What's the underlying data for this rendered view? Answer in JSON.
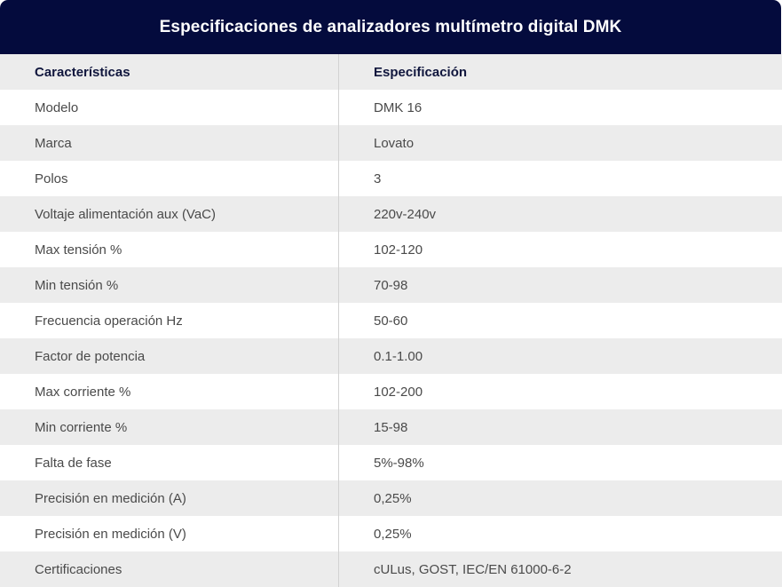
{
  "title": "Especificaciones de analizadores multímetro digital DMK",
  "columns": {
    "label": "Características",
    "value": "Especificación"
  },
  "rows": [
    {
      "label": "Modelo",
      "value": "DMK 16"
    },
    {
      "label": "Marca",
      "value": "Lovato"
    },
    {
      "label": "Polos",
      "value": "3"
    },
    {
      "label": "Voltaje alimentación aux (VaC)",
      "value": "220v-240v"
    },
    {
      "label": "Max tensión %",
      "value": "102-120"
    },
    {
      "label": "Min tensión %",
      "value": "70-98"
    },
    {
      "label": "Frecuencia operación Hz",
      "value": "50-60"
    },
    {
      "label": "Factor de potencia",
      "value": "0.1-1.00"
    },
    {
      "label": "Max corriente %",
      "value": "102-200"
    },
    {
      "label": "Min corriente %",
      "value": "15-98"
    },
    {
      "label": "Falta de fase",
      "value": "5%-98%"
    },
    {
      "label": "Precisión en medición (A)",
      "value": "0,25%"
    },
    {
      "label": "Precisión en medición (V)",
      "value": "0,25%"
    },
    {
      "label": "Certificaciones",
      "value": "cULus, GOST, IEC/EN 61000-6-2"
    }
  ],
  "colors": {
    "header_background": "#040b3d",
    "stripe": "#ececec",
    "header_text": "#10163d"
  }
}
